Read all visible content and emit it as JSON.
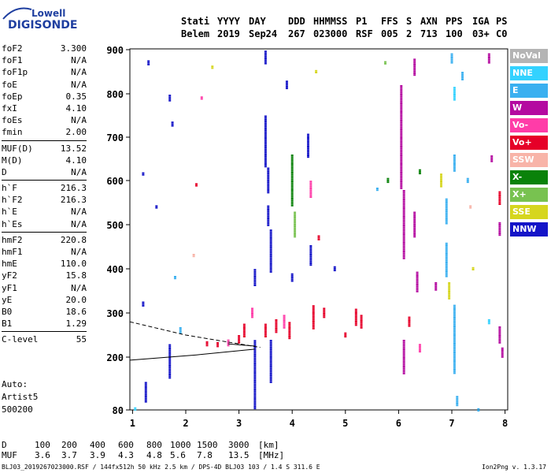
{
  "logo": {
    "line1": "Lowell",
    "line2": "DIGISONDE"
  },
  "header": {
    "labels": [
      "Stati",
      "YYYY",
      "DAY",
      "DDD",
      "HHMMSS",
      "P1",
      "FFS",
      "S",
      "AXN",
      "PPS",
      "IGA",
      "PS"
    ],
    "values": [
      "Belem",
      "2019",
      "Sep24",
      "267",
      "023000",
      "RSF",
      "005",
      "2",
      "713",
      "100",
      "03+",
      "C0"
    ]
  },
  "params": [
    [
      {
        "k": "foF2",
        "v": "3.300"
      },
      {
        "k": "foF1",
        "v": "N/A"
      },
      {
        "k": "foF1p",
        "v": "N/A"
      },
      {
        "k": "foE",
        "v": "N/A"
      },
      {
        "k": "foEp",
        "v": "0.35"
      },
      {
        "k": "fxI",
        "v": "4.10"
      },
      {
        "k": "foEs",
        "v": "N/A"
      },
      {
        "k": "fmin",
        "v": "2.00"
      }
    ],
    [
      {
        "k": "MUF(D)",
        "v": "13.52"
      },
      {
        "k": "M(D)",
        "v": "4.10"
      },
      {
        "k": "D",
        "v": "N/A"
      }
    ],
    [
      {
        "k": "h`F",
        "v": "216.3"
      },
      {
        "k": "h`F2",
        "v": "216.3"
      },
      {
        "k": "h`E",
        "v": "N/A"
      },
      {
        "k": "h`Es",
        "v": "N/A"
      }
    ],
    [
      {
        "k": "hmF2",
        "v": "220.8"
      },
      {
        "k": "hmF1",
        "v": "N/A"
      },
      {
        "k": "hmE",
        "v": "110.0"
      },
      {
        "k": "yF2",
        "v": "15.8"
      },
      {
        "k": "yF1",
        "v": "N/A"
      },
      {
        "k": "yE",
        "v": "20.0"
      },
      {
        "k": "B0",
        "v": "18.6"
      },
      {
        "k": "B1",
        "v": "1.29"
      }
    ],
    [
      {
        "k": "C-level",
        "v": "55"
      }
    ]
  ],
  "auto": {
    "label": "Auto:",
    "program": "Artist5",
    "version": "500200"
  },
  "legend": [
    {
      "label": "NoVal",
      "color": "#b4b4b4"
    },
    {
      "label": "NNE",
      "color": "#33d2ff"
    },
    {
      "label": "E",
      "color": "#3ab0f0"
    },
    {
      "label": "W",
      "color": "#b40aa0"
    },
    {
      "label": "Vo-",
      "color": "#ff3ca8"
    },
    {
      "label": "Vo+",
      "color": "#e60028"
    },
    {
      "label": "SSW",
      "color": "#f8b4a8"
    },
    {
      "label": "X-",
      "color": "#0a820a"
    },
    {
      "label": "X+",
      "color": "#78c250"
    },
    {
      "label": "SSE",
      "color": "#d6d61e"
    },
    {
      "label": "NNW",
      "color": "#1414c8"
    }
  ],
  "bottom": {
    "d_label": "D",
    "d_values": [
      "100",
      "200",
      "400",
      "600",
      "800",
      "1000",
      "1500",
      "3000"
    ],
    "d_unit": "[km]",
    "muf_label": "MUF",
    "muf_values": [
      "3.6",
      "3.7",
      "3.9",
      "4.3",
      "4.8",
      "5.6",
      "7.8",
      "13.5"
    ],
    "muf_unit": "[MHz]"
  },
  "footer": {
    "left": "BLJ03_2019267023000.RSF / 144fx512h 50 kHz 2.5 km / DPS-4D BLJ03 103 / 1.4 S 311.6 E",
    "right": "Ion2Png v. 1.3.17"
  },
  "chart_data": {
    "type": "scatter",
    "x_ticks": [
      1,
      2,
      3,
      4,
      5,
      6,
      7,
      8
    ],
    "y_ticks": [
      80,
      200,
      300,
      400,
      500,
      600,
      700,
      800,
      900
    ],
    "xlim": [
      0.95,
      8.05
    ],
    "ylim": [
      80,
      900
    ],
    "grid": false,
    "legend_position": "right",
    "traces": [
      {
        "style": "dashed",
        "points": [
          [
            0.9,
            280
          ],
          [
            2.0,
            250
          ],
          [
            3.4,
            222
          ]
        ]
      },
      {
        "style": "solid",
        "points": [
          [
            0.9,
            193
          ],
          [
            2.2,
            205
          ],
          [
            3.3,
            218
          ]
        ]
      },
      {
        "style": "solid",
        "points": [
          [
            2.8,
            230
          ],
          [
            3.3,
            225
          ]
        ]
      }
    ],
    "echoes": [
      {
        "x": 1.3,
        "y": 870,
        "c": "NNW",
        "l": 3
      },
      {
        "x": 1.7,
        "y": 790,
        "c": "NNW",
        "l": 4
      },
      {
        "x": 1.75,
        "y": 730,
        "c": "NNW",
        "l": 3
      },
      {
        "x": 1.2,
        "y": 615,
        "c": "NNW",
        "l": 2
      },
      {
        "x": 1.45,
        "y": 540,
        "c": "NNW",
        "l": 2
      },
      {
        "x": 1.2,
        "y": 320,
        "c": "NNW",
        "l": 3
      },
      {
        "x": 1.7,
        "y": 190,
        "c": "NNW",
        "l": 20
      },
      {
        "x": 1.25,
        "y": 120,
        "c": "NNW",
        "l": 12
      },
      {
        "x": 2.3,
        "y": 790,
        "c": "Vo-",
        "l": 2
      },
      {
        "x": 2.5,
        "y": 860,
        "c": "SSE",
        "l": 2
      },
      {
        "x": 2.2,
        "y": 590,
        "c": "Vo+",
        "l": 2
      },
      {
        "x": 2.15,
        "y": 430,
        "c": "SSW",
        "l": 2
      },
      {
        "x": 1.8,
        "y": 380,
        "c": "E",
        "l": 2
      },
      {
        "x": 1.9,
        "y": 260,
        "c": "E",
        "l": 4
      },
      {
        "x": 2.4,
        "y": 230,
        "c": "Vo+",
        "l": 3
      },
      {
        "x": 2.6,
        "y": 228,
        "c": "Vo+",
        "l": 3
      },
      {
        "x": 2.8,
        "y": 232,
        "c": "Vo-",
        "l": 4
      },
      {
        "x": 3.0,
        "y": 240,
        "c": "Vo+",
        "l": 5
      },
      {
        "x": 3.1,
        "y": 260,
        "c": "Vo+",
        "l": 8
      },
      {
        "x": 3.25,
        "y": 300,
        "c": "Vo-",
        "l": 6
      },
      {
        "x": 3.3,
        "y": 380,
        "c": "NNW",
        "l": 10
      },
      {
        "x": 3.3,
        "y": 160,
        "c": "NNW",
        "l": 40
      },
      {
        "x": 3.5,
        "y": 890,
        "c": "NNW",
        "l": 12
      },
      {
        "x": 3.5,
        "y": 690,
        "c": "NNW",
        "l": 30
      },
      {
        "x": 3.55,
        "y": 600,
        "c": "NNW",
        "l": 15
      },
      {
        "x": 3.55,
        "y": 520,
        "c": "NNW",
        "l": 12
      },
      {
        "x": 3.6,
        "y": 440,
        "c": "NNW",
        "l": 25
      },
      {
        "x": 3.6,
        "y": 190,
        "c": "NNW",
        "l": 25
      },
      {
        "x": 3.9,
        "y": 820,
        "c": "NNW",
        "l": 5
      },
      {
        "x": 3.5,
        "y": 260,
        "c": "Vo+",
        "l": 8
      },
      {
        "x": 3.7,
        "y": 270,
        "c": "Vo+",
        "l": 8
      },
      {
        "x": 3.85,
        "y": 280,
        "c": "Vo-",
        "l": 8
      },
      {
        "x": 3.95,
        "y": 260,
        "c": "Vo+",
        "l": 10
      },
      {
        "x": 4.0,
        "y": 600,
        "c": "X-",
        "l": 30
      },
      {
        "x": 4.05,
        "y": 500,
        "c": "X+",
        "l": 15
      },
      {
        "x": 4.0,
        "y": 380,
        "c": "NNW",
        "l": 5
      },
      {
        "x": 4.3,
        "y": 680,
        "c": "NNW",
        "l": 14
      },
      {
        "x": 4.35,
        "y": 580,
        "c": "Vo-",
        "l": 10
      },
      {
        "x": 4.35,
        "y": 430,
        "c": "NNW",
        "l": 12
      },
      {
        "x": 4.4,
        "y": 290,
        "c": "Vo+",
        "l": 14
      },
      {
        "x": 4.45,
        "y": 850,
        "c": "SSE",
        "l": 2
      },
      {
        "x": 4.5,
        "y": 470,
        "c": "Vo+",
        "l": 3
      },
      {
        "x": 4.6,
        "y": 300,
        "c": "Vo+",
        "l": 6
      },
      {
        "x": 4.8,
        "y": 400,
        "c": "NNW",
        "l": 3
      },
      {
        "x": 5.0,
        "y": 250,
        "c": "Vo+",
        "l": 3
      },
      {
        "x": 5.2,
        "y": 290,
        "c": "Vo+",
        "l": 10
      },
      {
        "x": 5.3,
        "y": 280,
        "c": "Vo+",
        "l": 8
      },
      {
        "x": 5.6,
        "y": 580,
        "c": "E",
        "l": 2
      },
      {
        "x": 5.75,
        "y": 870,
        "c": "X+",
        "l": 2
      },
      {
        "x": 5.8,
        "y": 600,
        "c": "X-",
        "l": 3
      },
      {
        "x": 6.05,
        "y": 700,
        "c": "W",
        "l": 60
      },
      {
        "x": 6.1,
        "y": 500,
        "c": "W",
        "l": 40
      },
      {
        "x": 6.1,
        "y": 200,
        "c": "W",
        "l": 20
      },
      {
        "x": 6.3,
        "y": 860,
        "c": "W",
        "l": 10
      },
      {
        "x": 6.3,
        "y": 500,
        "c": "W",
        "l": 15
      },
      {
        "x": 6.35,
        "y": 370,
        "c": "W",
        "l": 12
      },
      {
        "x": 6.4,
        "y": 620,
        "c": "X-",
        "l": 3
      },
      {
        "x": 6.2,
        "y": 280,
        "c": "Vo+",
        "l": 6
      },
      {
        "x": 6.4,
        "y": 220,
        "c": "Vo-",
        "l": 5
      },
      {
        "x": 6.7,
        "y": 360,
        "c": "W",
        "l": 5
      },
      {
        "x": 6.8,
        "y": 600,
        "c": "SSE",
        "l": 8
      },
      {
        "x": 6.9,
        "y": 530,
        "c": "E",
        "l": 15
      },
      {
        "x": 6.9,
        "y": 420,
        "c": "E",
        "l": 20
      },
      {
        "x": 6.95,
        "y": 350,
        "c": "SSE",
        "l": 10
      },
      {
        "x": 7.0,
        "y": 880,
        "c": "E",
        "l": 6
      },
      {
        "x": 7.05,
        "y": 800,
        "c": "NNE",
        "l": 8
      },
      {
        "x": 7.05,
        "y": 640,
        "c": "E",
        "l": 10
      },
      {
        "x": 7.05,
        "y": 240,
        "c": "E",
        "l": 40
      },
      {
        "x": 7.1,
        "y": 100,
        "c": "E",
        "l": 6
      },
      {
        "x": 7.2,
        "y": 840,
        "c": "E",
        "l": 5
      },
      {
        "x": 7.3,
        "y": 600,
        "c": "E",
        "l": 3
      },
      {
        "x": 7.35,
        "y": 540,
        "c": "SSW",
        "l": 2
      },
      {
        "x": 7.4,
        "y": 400,
        "c": "SSE",
        "l": 2
      },
      {
        "x": 7.5,
        "y": 80,
        "c": "E",
        "l": 2
      },
      {
        "x": 7.7,
        "y": 880,
        "c": "W",
        "l": 6
      },
      {
        "x": 7.75,
        "y": 650,
        "c": "W",
        "l": 4
      },
      {
        "x": 7.9,
        "y": 560,
        "c": "Vo+",
        "l": 8
      },
      {
        "x": 7.9,
        "y": 490,
        "c": "W",
        "l": 8
      },
      {
        "x": 7.9,
        "y": 250,
        "c": "W",
        "l": 10
      },
      {
        "x": 7.7,
        "y": 280,
        "c": "NNE",
        "l": 3
      },
      {
        "x": 7.95,
        "y": 210,
        "c": "W",
        "l": 6
      },
      {
        "x": 1.05,
        "y": 82,
        "c": "NNE",
        "l": 2
      }
    ]
  }
}
